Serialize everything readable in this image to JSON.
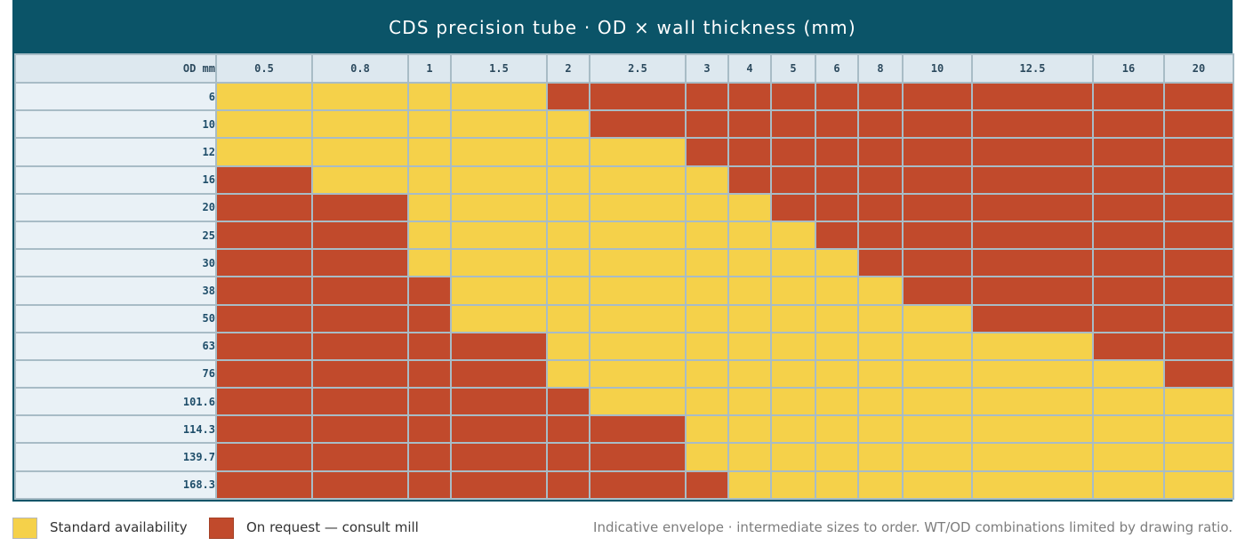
{
  "chart_data": {
    "type": "heatmap",
    "title": "CDS precision tube · OD × wall thickness (mm)",
    "corner_label": "OD mm",
    "x_categories": [
      "0.5",
      "0.8",
      "1",
      "1.5",
      "2",
      "2.5",
      "3",
      "4",
      "5",
      "6",
      "8",
      "10",
      "12.5",
      "16",
      "20"
    ],
    "y_categories": [
      "6",
      "10",
      "12",
      "16",
      "20",
      "25",
      "30",
      "38",
      "50",
      "63",
      "76",
      "101.6",
      "114.3",
      "139.7",
      "168.3"
    ],
    "cells": [
      [
        "S",
        "S",
        "S",
        "S",
        "R",
        "R",
        "R",
        "R",
        "R",
        "R",
        "R",
        "R",
        "R",
        "R",
        "R"
      ],
      [
        "S",
        "S",
        "S",
        "S",
        "S",
        "R",
        "R",
        "R",
        "R",
        "R",
        "R",
        "R",
        "R",
        "R",
        "R"
      ],
      [
        "S",
        "S",
        "S",
        "S",
        "S",
        "S",
        "R",
        "R",
        "R",
        "R",
        "R",
        "R",
        "R",
        "R",
        "R"
      ],
      [
        "R",
        "S",
        "S",
        "S",
        "S",
        "S",
        "S",
        "R",
        "R",
        "R",
        "R",
        "R",
        "R",
        "R",
        "R"
      ],
      [
        "R",
        "R",
        "S",
        "S",
        "S",
        "S",
        "S",
        "S",
        "R",
        "R",
        "R",
        "R",
        "R",
        "R",
        "R"
      ],
      [
        "R",
        "R",
        "S",
        "S",
        "S",
        "S",
        "S",
        "S",
        "S",
        "R",
        "R",
        "R",
        "R",
        "R",
        "R"
      ],
      [
        "R",
        "R",
        "S",
        "S",
        "S",
        "S",
        "S",
        "S",
        "S",
        "S",
        "R",
        "R",
        "R",
        "R",
        "R"
      ],
      [
        "R",
        "R",
        "R",
        "S",
        "S",
        "S",
        "S",
        "S",
        "S",
        "S",
        "S",
        "R",
        "R",
        "R",
        "R"
      ],
      [
        "R",
        "R",
        "R",
        "S",
        "S",
        "S",
        "S",
        "S",
        "S",
        "S",
        "S",
        "S",
        "R",
        "R",
        "R"
      ],
      [
        "R",
        "R",
        "R",
        "R",
        "S",
        "S",
        "S",
        "S",
        "S",
        "S",
        "S",
        "S",
        "S",
        "R",
        "R"
      ],
      [
        "R",
        "R",
        "R",
        "R",
        "S",
        "S",
        "S",
        "S",
        "S",
        "S",
        "S",
        "S",
        "S",
        "S",
        "R"
      ],
      [
        "R",
        "R",
        "R",
        "R",
        "R",
        "S",
        "S",
        "S",
        "S",
        "S",
        "S",
        "S",
        "S",
        "S",
        "S"
      ],
      [
        "R",
        "R",
        "R",
        "R",
        "R",
        "R",
        "S",
        "S",
        "S",
        "S",
        "S",
        "S",
        "S",
        "S",
        "S"
      ],
      [
        "R",
        "R",
        "R",
        "R",
        "R",
        "R",
        "S",
        "S",
        "S",
        "S",
        "S",
        "S",
        "S",
        "S",
        "S"
      ],
      [
        "R",
        "R",
        "R",
        "R",
        "R",
        "R",
        "R",
        "S",
        "S",
        "S",
        "S",
        "S",
        "S",
        "S",
        "S"
      ]
    ],
    "legend": [
      {
        "key": "S",
        "label": "Standard availability",
        "color": "#f5d14a"
      },
      {
        "key": "R",
        "label": "On request — consult mill",
        "color": "#c14a2c"
      }
    ],
    "note": "Indicative envelope · intermediate sizes to order. WT/OD combinations limited by drawing ratio."
  }
}
